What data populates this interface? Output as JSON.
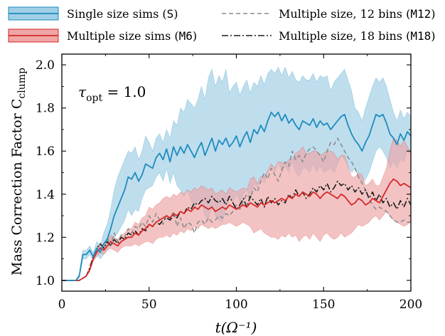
{
  "chart_data": {
    "type": "line",
    "xlabel": "t(Ω⁻¹)",
    "ylabel": "Mass Correction Factor C",
    "ylabel_sub": "clump",
    "xlim": [
      0,
      200
    ],
    "ylim": [
      0.95,
      2.05
    ],
    "xticks": [
      0,
      50,
      100,
      150,
      200
    ],
    "yticks": [
      1.0,
      1.2,
      1.4,
      1.6,
      1.8,
      2.0
    ],
    "x_tick_labels": [
      "0",
      "50",
      "100",
      "150",
      "200"
    ],
    "y_tick_labels": [
      "1.0",
      "1.2",
      "1.4",
      "1.6",
      "1.8",
      "2.0"
    ],
    "annotation": {
      "symbol": "τ",
      "sub": "opt",
      "rest": " = 1.0"
    },
    "legend": {
      "placement": "top (outside, two columns)",
      "entries": [
        {
          "text": "Single size sims (",
          "code": "S",
          "close": ")",
          "style": "band",
          "color": "#1f8bbd",
          "fill": "#9fcfe6"
        },
        {
          "text": "Multiple size sims (",
          "code": "M6",
          "close": ")",
          "style": "band",
          "color": "#d62728",
          "fill": "#eea6a6"
        },
        {
          "text": "Multiple size, 12 bins (",
          "code": "M12",
          "close": ")",
          "style": "dashed",
          "color": "#8c8c8c"
        },
        {
          "text": "Multiple size, 18 bins (",
          "code": "M18",
          "close": ")",
          "style": "dashdot",
          "color": "#1a1a1a"
        }
      ]
    },
    "x": [
      0,
      2,
      4,
      6,
      8,
      10,
      12,
      14,
      16,
      18,
      20,
      22,
      24,
      26,
      28,
      30,
      32,
      34,
      36,
      38,
      40,
      42,
      44,
      46,
      48,
      50,
      52,
      54,
      56,
      58,
      60,
      62,
      64,
      66,
      68,
      70,
      72,
      74,
      76,
      78,
      80,
      82,
      84,
      86,
      88,
      90,
      92,
      94,
      96,
      98,
      100,
      102,
      104,
      106,
      108,
      110,
      112,
      114,
      116,
      118,
      120,
      122,
      124,
      126,
      128,
      130,
      132,
      134,
      136,
      138,
      140,
      142,
      144,
      146,
      148,
      150,
      152,
      154,
      156,
      158,
      160,
      162,
      164,
      166,
      168,
      170,
      172,
      174,
      176,
      178,
      180,
      182,
      184,
      186,
      188,
      190,
      192,
      194,
      196,
      198,
      200
    ],
    "series": [
      {
        "name": "Single size sims (S)",
        "style": "solid",
        "color": "#1f8bbd",
        "band_color": "#9fcfe6",
        "values": [
          1.0,
          1.0,
          1.0,
          1.0,
          1.0,
          1.02,
          1.12,
          1.12,
          1.14,
          1.11,
          1.15,
          1.13,
          1.17,
          1.19,
          1.24,
          1.3,
          1.34,
          1.38,
          1.42,
          1.48,
          1.47,
          1.5,
          1.46,
          1.49,
          1.54,
          1.53,
          1.52,
          1.57,
          1.59,
          1.56,
          1.61,
          1.55,
          1.62,
          1.58,
          1.62,
          1.59,
          1.63,
          1.6,
          1.57,
          1.61,
          1.64,
          1.58,
          1.62,
          1.66,
          1.6,
          1.65,
          1.63,
          1.66,
          1.62,
          1.64,
          1.67,
          1.62,
          1.66,
          1.69,
          1.64,
          1.7,
          1.68,
          1.72,
          1.69,
          1.74,
          1.78,
          1.76,
          1.78,
          1.74,
          1.77,
          1.73,
          1.75,
          1.72,
          1.7,
          1.74,
          1.73,
          1.72,
          1.75,
          1.71,
          1.74,
          1.72,
          1.73,
          1.7,
          1.72,
          1.74,
          1.76,
          1.77,
          1.72,
          1.68,
          1.65,
          1.63,
          1.6,
          1.64,
          1.67,
          1.72,
          1.77,
          1.76,
          1.77,
          1.73,
          1.68,
          1.66,
          1.63,
          1.68,
          1.65,
          1.69,
          1.67
        ],
        "lower": [
          1.0,
          1.0,
          1.0,
          1.0,
          1.0,
          1.01,
          1.1,
          1.1,
          1.12,
          1.09,
          1.12,
          1.1,
          1.12,
          1.14,
          1.17,
          1.2,
          1.22,
          1.25,
          1.28,
          1.33,
          1.3,
          1.33,
          1.32,
          1.38,
          1.42,
          1.43,
          1.44,
          1.48,
          1.5,
          1.46,
          1.52,
          1.45,
          1.5,
          1.44,
          1.42,
          1.39,
          1.42,
          1.37,
          1.33,
          1.37,
          1.36,
          1.3,
          1.28,
          1.35,
          1.3,
          1.28,
          1.27,
          1.34,
          1.38,
          1.36,
          1.4,
          1.36,
          1.4,
          1.42,
          1.38,
          1.45,
          1.43,
          1.48,
          1.45,
          1.5,
          1.53,
          1.5,
          1.55,
          1.5,
          1.53,
          1.5,
          1.55,
          1.5,
          1.48,
          1.52,
          1.52,
          1.5,
          1.54,
          1.5,
          1.53,
          1.5,
          1.51,
          1.52,
          1.5,
          1.54,
          1.58,
          1.56,
          1.53,
          1.5,
          1.52,
          1.48,
          1.45,
          1.47,
          1.5,
          1.55,
          1.6,
          1.62,
          1.6,
          1.57,
          1.52,
          1.55,
          1.52,
          1.56,
          1.55,
          1.6,
          1.58
        ],
        "upper": [
          1.0,
          1.0,
          1.0,
          1.0,
          1.0,
          1.03,
          1.14,
          1.14,
          1.16,
          1.13,
          1.18,
          1.16,
          1.22,
          1.26,
          1.33,
          1.42,
          1.48,
          1.52,
          1.56,
          1.6,
          1.59,
          1.62,
          1.56,
          1.6,
          1.67,
          1.64,
          1.6,
          1.66,
          1.68,
          1.64,
          1.7,
          1.66,
          1.74,
          1.72,
          1.8,
          1.78,
          1.84,
          1.82,
          1.8,
          1.84,
          1.9,
          1.84,
          1.94,
          1.98,
          1.9,
          1.95,
          1.92,
          1.98,
          1.87,
          1.9,
          1.92,
          1.86,
          1.9,
          1.93,
          1.87,
          1.92,
          1.9,
          1.95,
          1.91,
          1.96,
          1.98,
          1.96,
          1.99,
          1.95,
          1.99,
          1.94,
          1.97,
          1.93,
          1.92,
          1.95,
          1.93,
          1.93,
          1.96,
          1.92,
          1.95,
          1.94,
          1.95,
          1.88,
          1.92,
          1.94,
          1.96,
          1.98,
          1.93,
          1.88,
          1.8,
          1.78,
          1.74,
          1.8,
          1.85,
          1.9,
          1.94,
          1.92,
          1.94,
          1.9,
          1.84,
          1.78,
          1.74,
          1.79,
          1.75,
          1.78,
          1.76
        ]
      },
      {
        "name": "Multiple size sims (M6)",
        "style": "solid",
        "color": "#d62728",
        "band_color": "#eea6a6",
        "values": [
          1.0,
          1.0,
          1.0,
          1.0,
          1.0,
          1.0,
          1.01,
          1.02,
          1.05,
          1.1,
          1.13,
          1.15,
          1.14,
          1.16,
          1.18,
          1.17,
          1.16,
          1.18,
          1.19,
          1.2,
          1.2,
          1.22,
          1.21,
          1.23,
          1.24,
          1.26,
          1.25,
          1.27,
          1.28,
          1.29,
          1.3,
          1.29,
          1.31,
          1.3,
          1.32,
          1.31,
          1.33,
          1.32,
          1.34,
          1.33,
          1.35,
          1.34,
          1.33,
          1.34,
          1.32,
          1.33,
          1.34,
          1.33,
          1.35,
          1.34,
          1.33,
          1.34,
          1.35,
          1.34,
          1.36,
          1.35,
          1.34,
          1.36,
          1.35,
          1.36,
          1.37,
          1.36,
          1.37,
          1.38,
          1.37,
          1.39,
          1.38,
          1.4,
          1.39,
          1.41,
          1.4,
          1.39,
          1.41,
          1.4,
          1.38,
          1.4,
          1.41,
          1.4,
          1.39,
          1.38,
          1.4,
          1.39,
          1.37,
          1.35,
          1.36,
          1.38,
          1.37,
          1.35,
          1.36,
          1.38,
          1.37,
          1.36,
          1.39,
          1.42,
          1.45,
          1.47,
          1.46,
          1.44,
          1.45,
          1.44,
          1.43
        ],
        "lower": [
          1.0,
          1.0,
          1.0,
          1.0,
          1.0,
          1.0,
          1.01,
          1.02,
          1.04,
          1.09,
          1.11,
          1.13,
          1.12,
          1.14,
          1.15,
          1.14,
          1.13,
          1.15,
          1.16,
          1.16,
          1.16,
          1.17,
          1.16,
          1.17,
          1.18,
          1.18,
          1.17,
          1.19,
          1.2,
          1.2,
          1.21,
          1.2,
          1.22,
          1.21,
          1.23,
          1.22,
          1.24,
          1.23,
          1.25,
          1.24,
          1.26,
          1.25,
          1.24,
          1.25,
          1.24,
          1.25,
          1.26,
          1.26,
          1.27,
          1.26,
          1.25,
          1.26,
          1.27,
          1.26,
          1.25,
          1.22,
          1.23,
          1.24,
          1.22,
          1.21,
          1.2,
          1.2,
          1.19,
          1.21,
          1.2,
          1.22,
          1.2,
          1.21,
          1.18,
          1.2,
          1.21,
          1.19,
          1.22,
          1.2,
          1.18,
          1.21,
          1.22,
          1.2,
          1.19,
          1.2,
          1.22,
          1.2,
          1.21,
          1.22,
          1.24,
          1.26,
          1.25,
          1.26,
          1.27,
          1.29,
          1.3,
          1.28,
          1.3,
          1.32,
          1.3,
          1.28,
          1.27,
          1.26,
          1.25,
          1.26,
          1.27
        ],
        "upper": [
          1.0,
          1.0,
          1.0,
          1.0,
          1.0,
          1.0,
          1.01,
          1.02,
          1.06,
          1.11,
          1.15,
          1.17,
          1.16,
          1.18,
          1.21,
          1.2,
          1.19,
          1.21,
          1.22,
          1.24,
          1.24,
          1.27,
          1.26,
          1.29,
          1.3,
          1.34,
          1.33,
          1.35,
          1.36,
          1.38,
          1.39,
          1.38,
          1.4,
          1.39,
          1.41,
          1.4,
          1.42,
          1.41,
          1.43,
          1.42,
          1.44,
          1.43,
          1.42,
          1.43,
          1.4,
          1.41,
          1.42,
          1.4,
          1.43,
          1.42,
          1.41,
          1.42,
          1.43,
          1.42,
          1.47,
          1.48,
          1.45,
          1.48,
          1.48,
          1.51,
          1.54,
          1.52,
          1.55,
          1.55,
          1.54,
          1.56,
          1.56,
          1.59,
          1.6,
          1.62,
          1.59,
          1.59,
          1.6,
          1.6,
          1.58,
          1.59,
          1.6,
          1.6,
          1.59,
          1.56,
          1.58,
          1.58,
          1.53,
          1.48,
          1.48,
          1.5,
          1.49,
          1.44,
          1.45,
          1.47,
          1.44,
          1.44,
          1.48,
          1.52,
          1.6,
          1.66,
          1.65,
          1.62,
          1.65,
          1.62,
          1.59
        ]
      },
      {
        "name": "Multiple size, 12 bins (M12)",
        "style": "dashed",
        "color": "#8c8c8c",
        "values": [
          1.0,
          1.0,
          1.0,
          1.0,
          1.0,
          1.0,
          1.01,
          1.02,
          1.05,
          1.1,
          1.14,
          1.17,
          1.15,
          1.2,
          1.16,
          1.22,
          1.18,
          1.21,
          1.2,
          1.24,
          1.22,
          1.25,
          1.24,
          1.27,
          1.25,
          1.3,
          1.27,
          1.31,
          1.28,
          1.26,
          1.3,
          1.28,
          1.32,
          1.25,
          1.29,
          1.24,
          1.27,
          1.26,
          1.22,
          1.27,
          1.28,
          1.26,
          1.29,
          1.27,
          1.28,
          1.3,
          1.29,
          1.31,
          1.3,
          1.32,
          1.35,
          1.33,
          1.37,
          1.4,
          1.38,
          1.43,
          1.41,
          1.46,
          1.5,
          1.47,
          1.52,
          1.49,
          1.46,
          1.51,
          1.55,
          1.53,
          1.6,
          1.56,
          1.58,
          1.55,
          1.59,
          1.61,
          1.62,
          1.6,
          1.58,
          1.55,
          1.6,
          1.64,
          1.63,
          1.66,
          1.63,
          1.6,
          1.57,
          1.55,
          1.52,
          1.48,
          1.45,
          1.42,
          1.38,
          1.35,
          1.33,
          1.34,
          1.33,
          1.32,
          1.3,
          1.28,
          1.27,
          1.27,
          1.28,
          1.27,
          1.27
        ]
      },
      {
        "name": "Multiple size, 18 bins (M18)",
        "style": "dashdot",
        "color": "#1a1a1a",
        "values": [
          1.0,
          1.0,
          1.0,
          1.0,
          1.0,
          1.0,
          1.01,
          1.02,
          1.06,
          1.11,
          1.15,
          1.17,
          1.15,
          1.18,
          1.16,
          1.19,
          1.17,
          1.2,
          1.19,
          1.22,
          1.21,
          1.23,
          1.21,
          1.24,
          1.23,
          1.26,
          1.25,
          1.27,
          1.26,
          1.28,
          1.29,
          1.28,
          1.3,
          1.29,
          1.32,
          1.31,
          1.34,
          1.33,
          1.36,
          1.35,
          1.37,
          1.38,
          1.36,
          1.39,
          1.37,
          1.36,
          1.38,
          1.35,
          1.39,
          1.36,
          1.33,
          1.35,
          1.38,
          1.34,
          1.39,
          1.37,
          1.35,
          1.38,
          1.34,
          1.39,
          1.36,
          1.38,
          1.35,
          1.37,
          1.36,
          1.4,
          1.38,
          1.42,
          1.39,
          1.41,
          1.38,
          1.4,
          1.43,
          1.41,
          1.44,
          1.42,
          1.45,
          1.41,
          1.43,
          1.46,
          1.44,
          1.45,
          1.42,
          1.44,
          1.41,
          1.43,
          1.4,
          1.42,
          1.38,
          1.41,
          1.37,
          1.4,
          1.36,
          1.38,
          1.34,
          1.36,
          1.33,
          1.37,
          1.34,
          1.38,
          1.35
        ]
      }
    ]
  }
}
